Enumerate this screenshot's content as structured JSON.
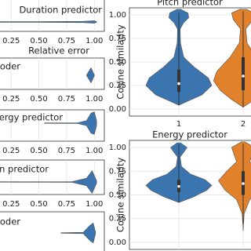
{
  "chart_data": [
    {
      "type": "violin",
      "orientation": "horizontal",
      "title": "Duration predictor",
      "xlim": [
        0.1,
        1.09
      ],
      "xticks": [
        0.25,
        {
          "value": 0.5,
          "label": "0.50"
        },
        0.75,
        {
          "value": 1,
          "label": "1.00"
        }
      ],
      "grid": true,
      "series": [
        {
          "color": "#3a75af",
          "profile": [
            [
              0.1,
              0.03
            ],
            [
              0.5,
              0.03
            ],
            [
              0.9,
              0.05
            ],
            [
              1.0,
              0.1
            ],
            [
              1.02,
              0.03
            ]
          ]
        }
      ]
    },
    {
      "type": "violin",
      "orientation": "horizontal",
      "subtitle": "Relative error",
      "title": "oder",
      "xlim": [
        0.1,
        1.09
      ],
      "xticks": [
        0.25,
        {
          "value": 0.5,
          "label": "0.50"
        },
        0.75,
        {
          "value": 1,
          "label": "1.00"
        }
      ],
      "grid": true,
      "series": [
        {
          "color": "#3a75af",
          "profile": [
            [
              0.93,
              0.02
            ],
            [
              0.97,
              0.6
            ],
            [
              1.0,
              0.02
            ]
          ]
        }
      ]
    },
    {
      "type": "violin",
      "orientation": "horizontal",
      "title": "ergy predictor",
      "xlim": [
        0.1,
        1.09
      ],
      "xticks": [
        0.25,
        {
          "value": 0.5,
          "label": "0.50"
        },
        0.75,
        {
          "value": 1,
          "label": "1.00"
        }
      ],
      "grid": true,
      "series": [
        {
          "color": "#3a75af",
          "profile": [
            [
              0.55,
              0.02
            ],
            [
              0.85,
              0.03
            ],
            [
              0.93,
              0.2
            ],
            [
              0.97,
              0.8
            ],
            [
              1.0,
              0.9
            ],
            [
              1.02,
              0.2
            ]
          ]
        }
      ]
    },
    {
      "type": "violin",
      "orientation": "horizontal",
      "title": "n predictor",
      "xlim": [
        0.1,
        1.09
      ],
      "xticks": [
        0.25,
        {
          "value": 0.5,
          "label": "0.50"
        },
        0.75,
        {
          "value": 1,
          "label": "1.00"
        }
      ],
      "grid": true,
      "series": [
        {
          "color": "#3a75af",
          "profile": [
            [
              0.15,
              0.02
            ],
            [
              0.8,
              0.03
            ],
            [
              0.93,
              0.3
            ],
            [
              0.98,
              0.9
            ],
            [
              1.02,
              0.1
            ]
          ]
        }
      ]
    },
    {
      "type": "violin",
      "orientation": "horizontal",
      "title": "oder",
      "xlim": [
        0.1,
        1.09
      ],
      "grid": true,
      "series": [
        {
          "color": "#3a75af",
          "profile": [
            [
              0.7,
              0.02
            ],
            [
              0.9,
              0.05
            ],
            [
              0.96,
              0.6
            ],
            [
              0.99,
              0.8
            ],
            [
              1.01,
              0.1
            ]
          ]
        }
      ]
    },
    {
      "type": "violin",
      "orientation": "vertical",
      "title": "Pitch predictor",
      "ylabel": "Cosine similarity",
      "categories": [
        "1",
        "2"
      ],
      "ylim": [
        -0.075,
        1.075
      ],
      "yticks": [
        {
          "value": 0,
          "label": "0.00"
        },
        0.25,
        {
          "value": 0.5,
          "label": "0.50"
        },
        0.75,
        {
          "value": 1,
          "label": "1.00"
        }
      ],
      "grid": true,
      "series": [
        {
          "color": "#3a75af",
          "profile": [
            [
              0.04,
              0
            ],
            [
              0.08,
              0.25
            ],
            [
              0.15,
              0.7
            ],
            [
              0.25,
              1.0
            ],
            [
              0.33,
              0.9
            ],
            [
              0.45,
              0.45
            ],
            [
              0.55,
              0.15
            ],
            [
              0.7,
              0.05
            ],
            [
              0.85,
              0.04
            ],
            [
              0.92,
              0.15
            ],
            [
              0.97,
              0.3
            ],
            [
              1.02,
              0.28
            ],
            [
              1.06,
              0.05
            ]
          ],
          "box": [
            0.18,
            0.27,
            0.42
          ],
          "whiskers": [
            0.04,
            1.02
          ]
        },
        {
          "color": "#e1812c",
          "profile": [
            [
              0.02,
              0
            ],
            [
              0.1,
              0.35
            ],
            [
              0.2,
              0.7
            ],
            [
              0.3,
              0.9
            ],
            [
              0.4,
              0.8
            ],
            [
              0.55,
              0.4
            ],
            [
              0.7,
              0.12
            ],
            [
              0.85,
              0.08
            ],
            [
              0.95,
              0.3
            ],
            [
              1.02,
              0.35
            ],
            [
              1.06,
              0.1
            ]
          ],
          "box": [
            0.2,
            0.35,
            0.55
          ],
          "whiskers": [
            0.02,
            1.04
          ]
        }
      ]
    },
    {
      "type": "violin",
      "orientation": "vertical",
      "title": "Energy predictor",
      "ylabel": "Cosine similarity",
      "ylim": [
        -0.075,
        1.075
      ],
      "yticks": [
        {
          "value": 0,
          "label": "0.00"
        },
        0.25,
        {
          "value": 0.5,
          "label": "0.50"
        },
        0.75,
        {
          "value": 1,
          "label": "1.00"
        }
      ],
      "grid": true,
      "series": [
        {
          "color": "#3a75af",
          "profile": [
            [
              0.42,
              0
            ],
            [
              0.48,
              0.45
            ],
            [
              0.55,
              0.85
            ],
            [
              0.6,
              1.0
            ],
            [
              0.66,
              0.8
            ],
            [
              0.72,
              0.35
            ],
            [
              0.8,
              0.08
            ],
            [
              0.9,
              0.04
            ],
            [
              0.95,
              0.15
            ],
            [
              1.0,
              0.25
            ],
            [
              1.05,
              0.05
            ]
          ],
          "box": [
            0.53,
            0.59,
            0.66
          ],
          "whiskers": [
            0.42,
            1.03
          ]
        },
        {
          "color": "#e1812c",
          "profile": [
            [
              0.12,
              0
            ],
            [
              0.3,
              0.03
            ],
            [
              0.45,
              0.2
            ],
            [
              0.55,
              0.55
            ],
            [
              0.65,
              0.75
            ],
            [
              0.75,
              0.5
            ],
            [
              0.85,
              0.2
            ],
            [
              0.95,
              0.3
            ],
            [
              1.0,
              0.35
            ],
            [
              1.06,
              0.05
            ]
          ],
          "box": [
            0.5,
            0.62,
            0.75
          ],
          "whiskers": [
            0.2,
            1.04
          ]
        }
      ]
    }
  ]
}
